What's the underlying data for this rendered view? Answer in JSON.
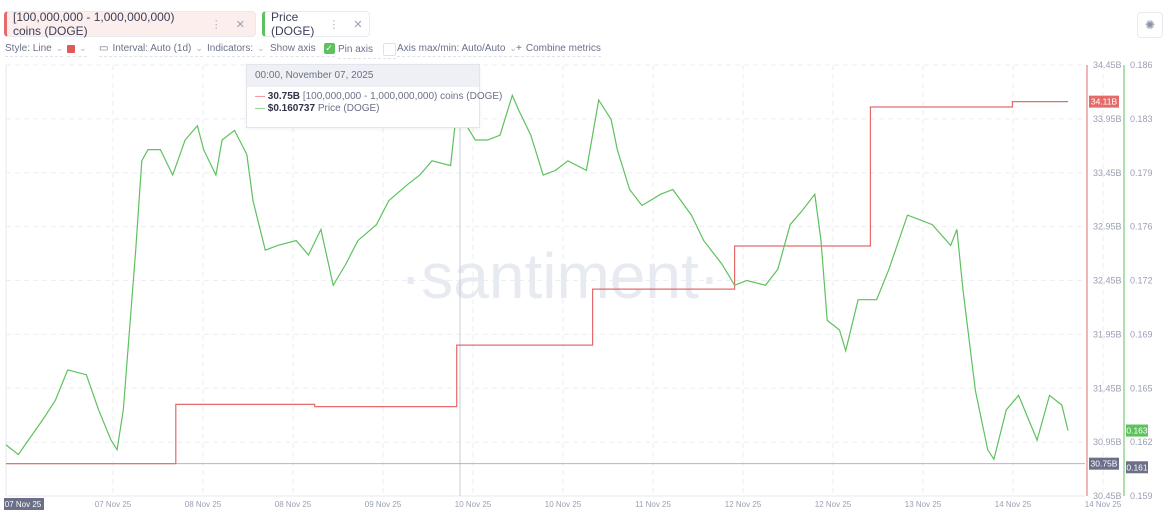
{
  "metrics": [
    {
      "label": "[100,000,000 - 1,000,000,000) coins (DOGE)",
      "color": "#e56b6b"
    },
    {
      "label": "Price (DOGE)",
      "color": "#5ec15e"
    }
  ],
  "toolbar": {
    "style": "Style: Line",
    "interval": "Interval: Auto (1d)",
    "indicators": "Indicators:",
    "show_axis": "Show axis",
    "show_axis_checked": true,
    "pin_axis": "Pin axis",
    "pin_axis_checked": false,
    "axis_maxmin": "Axis max/min: Auto/Auto",
    "combine": "Combine metrics"
  },
  "icons": {
    "menu": "vertical-dots-icon",
    "close": "close-icon",
    "settings": "gear-icon",
    "calendar": "calendar-icon",
    "chevron": "chevron-down-icon",
    "plus": "plus-icon"
  },
  "tooltip": {
    "date": "00:00, November 07, 2025",
    "rows": [
      {
        "value": "30.75B",
        "label": "[100,000,000 - 1,000,000,000) coins (DOGE)",
        "color": "#e56b6b"
      },
      {
        "value": "$0.160737",
        "label": "Price (DOGE)",
        "color": "#5ec15e"
      }
    ]
  },
  "watermark": "·santiment·",
  "chart_data": {
    "type": "line",
    "x_tick_labels": [
      "07 Nov 25",
      "07 Nov 25",
      "08 Nov 25",
      "08 Nov 25",
      "09 Nov 25",
      "10 Nov 25",
      "10 Nov 25",
      "11 Nov 25",
      "12 Nov 25",
      "12 Nov 25",
      "13 Nov 25",
      "14 Nov 25",
      "14 Nov 25"
    ],
    "x_range": [
      "2025-11-07T00:00",
      "2025-11-14T04:00"
    ],
    "grid": true,
    "axes": {
      "left": {
        "series": "supply",
        "ticks": [
          "34.45B",
          "33.95B",
          "33.45B",
          "32.95B",
          "32.45B",
          "31.95B",
          "31.45B",
          "30.95B",
          "30.45B"
        ],
        "ylim": [
          30.45,
          34.45
        ],
        "unit": "B",
        "color": "#e56b6b"
      },
      "right": {
        "series": "price",
        "ticks": [
          "0.186",
          "0.183",
          "0.179",
          "0.176",
          "0.172",
          "0.169",
          "0.165",
          "0.162",
          "0.159"
        ],
        "ylim": [
          0.159,
          0.186
        ],
        "color": "#5ec15e"
      }
    },
    "badges": [
      {
        "text": "34.11B",
        "axis": "left",
        "value": 34.11,
        "color": "#e56b6b"
      },
      {
        "text": "0.163",
        "axis": "right",
        "value": 0.1631,
        "color": "#5ec15e"
      },
      {
        "text": "30.75B",
        "axis": "left",
        "value": 30.75,
        "color": "#6b7088"
      },
      {
        "text": "0.161",
        "axis": "right",
        "value": 0.1608,
        "color": "#6b7088"
      }
    ],
    "highlight_x_label": "07 Nov 25",
    "series": [
      {
        "name": "[100,000,000 - 1,000,000,000) coins (DOGE)",
        "key": "supply",
        "step": true,
        "color": "#e56b6b",
        "points": [
          [
            "2025-11-07T00:00",
            30.75
          ],
          [
            "2025-11-08T03:30",
            31.3
          ],
          [
            "2025-11-09T02:00",
            31.28
          ],
          [
            "2025-11-10T01:00",
            31.85
          ],
          [
            "2025-11-10T23:00",
            32.37
          ],
          [
            "2025-11-11T22:00",
            32.77
          ],
          [
            "2025-11-12T20:00",
            34.06
          ],
          [
            "2025-11-13T19:00",
            34.11
          ],
          [
            "2025-11-14T04:00",
            34.11
          ]
        ]
      },
      {
        "name": "Price (DOGE)",
        "key": "price",
        "color": "#5ec15e",
        "points": [
          [
            "2025-11-07T00:00",
            0.1622
          ],
          [
            "2025-11-07T02:00",
            0.1616
          ],
          [
            "2025-11-07T06:00",
            0.1638
          ],
          [
            "2025-11-07T08:00",
            0.165
          ],
          [
            "2025-11-07T10:00",
            0.1669
          ],
          [
            "2025-11-07T13:00",
            0.1666
          ],
          [
            "2025-11-07T15:00",
            0.1644
          ],
          [
            "2025-11-07T17:00",
            0.1625
          ],
          [
            "2025-11-07T18:00",
            0.1619
          ],
          [
            "2025-11-07T19:00",
            0.1644
          ],
          [
            "2025-11-07T20:00",
            0.1694
          ],
          [
            "2025-11-07T21:00",
            0.1744
          ],
          [
            "2025-11-07T22:00",
            0.18
          ],
          [
            "2025-11-07T23:00",
            0.1807
          ],
          [
            "2025-11-08T01:00",
            0.1807
          ],
          [
            "2025-11-08T03:00",
            0.1791
          ],
          [
            "2025-11-08T05:00",
            0.1813
          ],
          [
            "2025-11-08T07:00",
            0.1822
          ],
          [
            "2025-11-08T08:00",
            0.1807
          ],
          [
            "2025-11-08T10:00",
            0.1791
          ],
          [
            "2025-11-08T11:00",
            0.1813
          ],
          [
            "2025-11-08T13:00",
            0.1819
          ],
          [
            "2025-11-08T15:00",
            0.1804
          ],
          [
            "2025-11-08T16:00",
            0.1775
          ],
          [
            "2025-11-08T18:00",
            0.1744
          ],
          [
            "2025-11-08T20:00",
            0.1747
          ],
          [
            "2025-11-08T23:00",
            0.175
          ],
          [
            "2025-11-09T01:00",
            0.1741
          ],
          [
            "2025-11-09T03:00",
            0.1757
          ],
          [
            "2025-11-09T05:00",
            0.1722
          ],
          [
            "2025-11-09T07:00",
            0.1735
          ],
          [
            "2025-11-09T09:00",
            0.175
          ],
          [
            "2025-11-09T12:00",
            0.176
          ],
          [
            "2025-11-09T14:00",
            0.1775
          ],
          [
            "2025-11-09T17:00",
            0.1785
          ],
          [
            "2025-11-09T19:00",
            0.1791
          ],
          [
            "2025-11-09T21:00",
            0.18
          ],
          [
            "2025-11-10T00:00",
            0.1797
          ],
          [
            "2025-11-10T01:00",
            0.1832
          ],
          [
            "2025-11-10T04:00",
            0.1813
          ],
          [
            "2025-11-10T06:00",
            0.1813
          ],
          [
            "2025-11-10T08:00",
            0.1816
          ],
          [
            "2025-11-10T10:00",
            0.1841
          ],
          [
            "2025-11-10T11:00",
            0.1832
          ],
          [
            "2025-11-10T13:00",
            0.1816
          ],
          [
            "2025-11-10T15:00",
            0.1791
          ],
          [
            "2025-11-10T17:00",
            0.1794
          ],
          [
            "2025-11-10T19:00",
            0.18
          ],
          [
            "2025-11-10T22:00",
            0.1794
          ],
          [
            "2025-11-11T00:00",
            0.1838
          ],
          [
            "2025-11-11T02:00",
            0.1826
          ],
          [
            "2025-11-11T03:00",
            0.1807
          ],
          [
            "2025-11-11T05:00",
            0.1782
          ],
          [
            "2025-11-11T07:00",
            0.1772
          ],
          [
            "2025-11-11T10:00",
            0.1779
          ],
          [
            "2025-11-11T12:00",
            0.1782
          ],
          [
            "2025-11-11T15:00",
            0.1766
          ],
          [
            "2025-11-11T17:00",
            0.175
          ],
          [
            "2025-11-11T20:00",
            0.1735
          ],
          [
            "2025-11-11T22:00",
            0.1722
          ],
          [
            "2025-11-12T00:00",
            0.1725
          ],
          [
            "2025-11-12T03:00",
            0.1722
          ],
          [
            "2025-11-12T05:00",
            0.1732
          ],
          [
            "2025-11-12T07:00",
            0.176
          ],
          [
            "2025-11-12T09:00",
            0.1769
          ],
          [
            "2025-11-12T11:00",
            0.1779
          ],
          [
            "2025-11-12T12:00",
            0.175
          ],
          [
            "2025-11-12T13:00",
            0.17
          ],
          [
            "2025-11-12T15:00",
            0.1694
          ],
          [
            "2025-11-12T16:00",
            0.1681
          ],
          [
            "2025-11-12T18:00",
            0.1713
          ],
          [
            "2025-11-12T21:00",
            0.1713
          ],
          [
            "2025-11-12T23:00",
            0.1732
          ],
          [
            "2025-11-13T02:00",
            0.1766
          ],
          [
            "2025-11-13T04:00",
            0.1763
          ],
          [
            "2025-11-13T06:00",
            0.176
          ],
          [
            "2025-11-13T09:00",
            0.1747
          ],
          [
            "2025-11-13T10:00",
            0.1757
          ],
          [
            "2025-11-13T11:00",
            0.1719
          ],
          [
            "2025-11-13T13:00",
            0.1656
          ],
          [
            "2025-11-13T15:00",
            0.1619
          ],
          [
            "2025-11-13T16:00",
            0.1613
          ],
          [
            "2025-11-13T18:00",
            0.1644
          ],
          [
            "2025-11-13T20:00",
            0.1653
          ],
          [
            "2025-11-13T23:00",
            0.1625
          ],
          [
            "2025-11-14T01:00",
            0.1653
          ],
          [
            "2025-11-14T03:00",
            0.1647
          ],
          [
            "2025-11-14T04:00",
            0.1631
          ]
        ]
      }
    ]
  }
}
